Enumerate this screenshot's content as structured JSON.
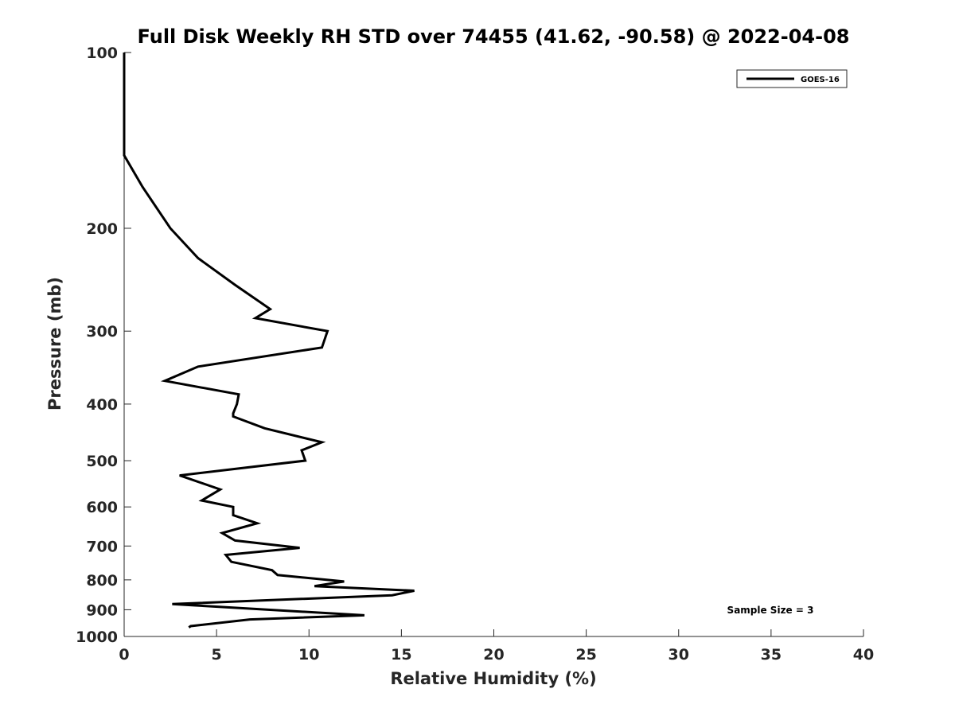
{
  "chart_data": {
    "type": "line",
    "title": "Full Disk Weekly RH STD over 74455 (41.62, -90.58) @ 2022-04-08",
    "xlabel": "Relative Humidity (%)",
    "ylabel": "Pressure (mb)",
    "xlim": [
      0,
      40
    ],
    "ylim": [
      1000,
      100
    ],
    "yscale": "log",
    "y_reversed": true,
    "x_ticks": [
      0,
      5,
      10,
      15,
      20,
      25,
      30,
      35,
      40
    ],
    "y_ticks": [
      100,
      200,
      300,
      400,
      500,
      600,
      700,
      800,
      900,
      1000
    ],
    "grid": false,
    "legend_position": "top-right",
    "annotation": "Sample Size = 3",
    "series": [
      {
        "name": "GOES-16",
        "color": "#000000",
        "points": [
          [
            0,
            100
          ],
          [
            0,
            125
          ],
          [
            0,
            150
          ],
          [
            1,
            170
          ],
          [
            2.5,
            200
          ],
          [
            4,
            225
          ],
          [
            6,
            250
          ],
          [
            7.9,
            275
          ],
          [
            7.1,
            285
          ],
          [
            11,
            300
          ],
          [
            10.7,
            320
          ],
          [
            4,
            345
          ],
          [
            2.2,
            365
          ],
          [
            6.2,
            385
          ],
          [
            6.1,
            400
          ],
          [
            5.9,
            415
          ],
          [
            5.9,
            420
          ],
          [
            7.6,
            440
          ],
          [
            10.7,
            465
          ],
          [
            9.6,
            480
          ],
          [
            9.8,
            500
          ],
          [
            3,
            530
          ],
          [
            5.2,
            560
          ],
          [
            4.2,
            585
          ],
          [
            5.9,
            600
          ],
          [
            5.9,
            620
          ],
          [
            7.2,
            640
          ],
          [
            5.3,
            665
          ],
          [
            6,
            685
          ],
          [
            9.5,
            705
          ],
          [
            5.5,
            725
          ],
          [
            5.8,
            745
          ],
          [
            8,
            770
          ],
          [
            8.3,
            785
          ],
          [
            11.9,
            805
          ],
          [
            10.3,
            820
          ],
          [
            15.7,
            835
          ],
          [
            14.5,
            850
          ],
          [
            2.6,
            880
          ],
          [
            13,
            920
          ],
          [
            6.8,
            935
          ],
          [
            3.6,
            960
          ],
          [
            3.5,
            965
          ]
        ]
      }
    ]
  }
}
